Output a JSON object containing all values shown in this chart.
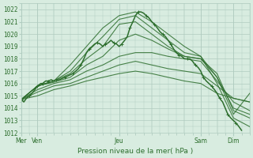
{
  "title": "",
  "xlabel": "Pression niveau de la mer( hPa )",
  "ylabel": "",
  "bg_color": "#d8ece0",
  "grid_color": "#b0ccc0",
  "line_color": "#2d6e2d",
  "ylim": [
    1012,
    1022.5
  ],
  "yticks": [
    1012,
    1013,
    1014,
    1015,
    1016,
    1017,
    1018,
    1019,
    1020,
    1021,
    1022
  ],
  "day_labels": [
    "Mer",
    "Ven",
    "Jeu",
    "Sam",
    "Dim"
  ],
  "day_positions": [
    0.0,
    0.5,
    3.0,
    5.5,
    6.5
  ],
  "total_days": 7.0,
  "lines": [
    {
      "x": [
        0.0,
        0.5,
        1.0,
        1.5,
        2.0,
        2.5,
        3.0,
        3.5,
        4.0,
        4.5,
        5.0,
        5.5,
        6.0,
        6.5,
        7.0
      ],
      "y": [
        1014.7,
        1015.8,
        1016.2,
        1017.5,
        1019.0,
        1020.5,
        1021.5,
        1021.8,
        1021.0,
        1020.0,
        1019.0,
        1018.2,
        1016.0,
        1013.2,
        1012.5
      ]
    },
    {
      "x": [
        0.0,
        0.5,
        1.0,
        1.5,
        2.0,
        2.5,
        3.0,
        3.5,
        4.0,
        4.5,
        5.0,
        5.5,
        6.0,
        6.5,
        7.0
      ],
      "y": [
        1014.7,
        1015.8,
        1016.2,
        1017.0,
        1018.5,
        1019.8,
        1021.2,
        1021.5,
        1020.5,
        1019.5,
        1018.5,
        1018.2,
        1016.5,
        1013.5,
        1015.2
      ]
    },
    {
      "x": [
        0.0,
        0.5,
        1.0,
        1.5,
        2.0,
        2.5,
        3.0,
        3.5,
        4.0,
        4.5,
        5.0,
        5.5,
        6.0,
        6.5,
        7.0
      ],
      "y": [
        1014.7,
        1015.8,
        1016.2,
        1016.8,
        1018.0,
        1019.0,
        1020.8,
        1021.0,
        1020.0,
        1019.0,
        1018.2,
        1018.0,
        1016.8,
        1013.8,
        1013.2
      ]
    },
    {
      "x": [
        0.0,
        0.5,
        1.0,
        1.5,
        2.0,
        2.5,
        3.0,
        3.5,
        4.0,
        4.5,
        5.0,
        5.5,
        6.0,
        6.5,
        7.0
      ],
      "y": [
        1014.7,
        1015.8,
        1016.1,
        1016.5,
        1017.5,
        1018.2,
        1019.5,
        1020.0,
        1019.5,
        1018.8,
        1018.2,
        1018.0,
        1016.5,
        1014.0,
        1013.5
      ]
    },
    {
      "x": [
        0.0,
        0.5,
        1.0,
        1.5,
        2.0,
        2.5,
        3.0,
        3.5,
        4.0,
        4.5,
        5.0,
        5.5,
        6.0,
        6.5,
        7.0
      ],
      "y": [
        1014.7,
        1015.5,
        1016.0,
        1016.3,
        1017.0,
        1017.5,
        1018.2,
        1018.5,
        1018.5,
        1018.2,
        1018.0,
        1017.8,
        1016.2,
        1014.5,
        1013.8
      ]
    },
    {
      "x": [
        0.0,
        0.5,
        1.0,
        1.5,
        2.0,
        2.5,
        3.0,
        3.5,
        4.0,
        4.5,
        5.0,
        5.5,
        6.0,
        6.5,
        7.0
      ],
      "y": [
        1014.7,
        1015.3,
        1015.8,
        1016.0,
        1016.5,
        1017.0,
        1017.5,
        1017.8,
        1017.5,
        1017.2,
        1017.0,
        1016.8,
        1015.8,
        1014.8,
        1014.5
      ]
    },
    {
      "x": [
        0.0,
        0.5,
        1.0,
        1.5,
        2.0,
        2.5,
        3.0,
        3.5,
        4.0,
        4.5,
        5.0,
        5.5,
        6.0,
        6.5,
        7.0
      ],
      "y": [
        1014.7,
        1015.0,
        1015.5,
        1015.8,
        1016.2,
        1016.5,
        1016.8,
        1017.0,
        1016.8,
        1016.5,
        1016.2,
        1016.0,
        1015.2,
        1014.8,
        1014.5
      ]
    }
  ],
  "observed_line": {
    "x": [
      0.0,
      0.08,
      0.16,
      0.25,
      0.33,
      0.42,
      0.5,
      0.55,
      0.6,
      0.67,
      0.7,
      0.75,
      0.83,
      0.92,
      1.0,
      1.08,
      1.17,
      1.25,
      1.33,
      1.42,
      1.5,
      1.58,
      1.67,
      1.75,
      1.83,
      1.92,
      2.0,
      2.08,
      2.17,
      2.25,
      2.33,
      2.42,
      2.5,
      2.58,
      2.67,
      2.75,
      2.83,
      2.92,
      3.0,
      3.08,
      3.17,
      3.25,
      3.33,
      3.42,
      3.5,
      3.58,
      3.67,
      3.75,
      3.83,
      3.92,
      4.0,
      4.08,
      4.17,
      4.25,
      4.33,
      4.42,
      4.5,
      4.58,
      4.67,
      4.75,
      4.83,
      4.92,
      5.0,
      5.08,
      5.17,
      5.25,
      5.33,
      5.42,
      5.5,
      5.58,
      5.67,
      5.75,
      5.83,
      5.92,
      6.0,
      6.08,
      6.17,
      6.25,
      6.33,
      6.42,
      6.5,
      6.58,
      6.67,
      6.75
    ],
    "y": [
      1014.7,
      1014.5,
      1014.8,
      1015.0,
      1015.2,
      1015.5,
      1015.8,
      1015.9,
      1016.0,
      1016.0,
      1016.1,
      1016.2,
      1016.2,
      1016.3,
      1016.2,
      1016.3,
      1016.3,
      1016.4,
      1016.5,
      1016.6,
      1016.7,
      1016.8,
      1017.0,
      1017.2,
      1017.5,
      1018.0,
      1018.5,
      1018.8,
      1019.0,
      1019.2,
      1019.3,
      1019.2,
      1019.0,
      1019.2,
      1019.3,
      1019.5,
      1019.3,
      1019.2,
      1019.0,
      1019.2,
      1019.5,
      1019.8,
      1020.5,
      1021.0,
      1021.5,
      1021.8,
      1021.8,
      1021.7,
      1021.5,
      1021.3,
      1021.0,
      1020.8,
      1020.5,
      1020.2,
      1020.0,
      1019.8,
      1019.5,
      1019.2,
      1018.8,
      1018.5,
      1018.3,
      1018.2,
      1018.0,
      1018.0,
      1018.0,
      1017.8,
      1017.5,
      1017.3,
      1017.0,
      1016.5,
      1016.2,
      1016.0,
      1015.8,
      1015.5,
      1015.2,
      1014.8,
      1014.5,
      1014.0,
      1013.5,
      1013.2,
      1013.0,
      1012.8,
      1012.5,
      1012.2
    ]
  }
}
